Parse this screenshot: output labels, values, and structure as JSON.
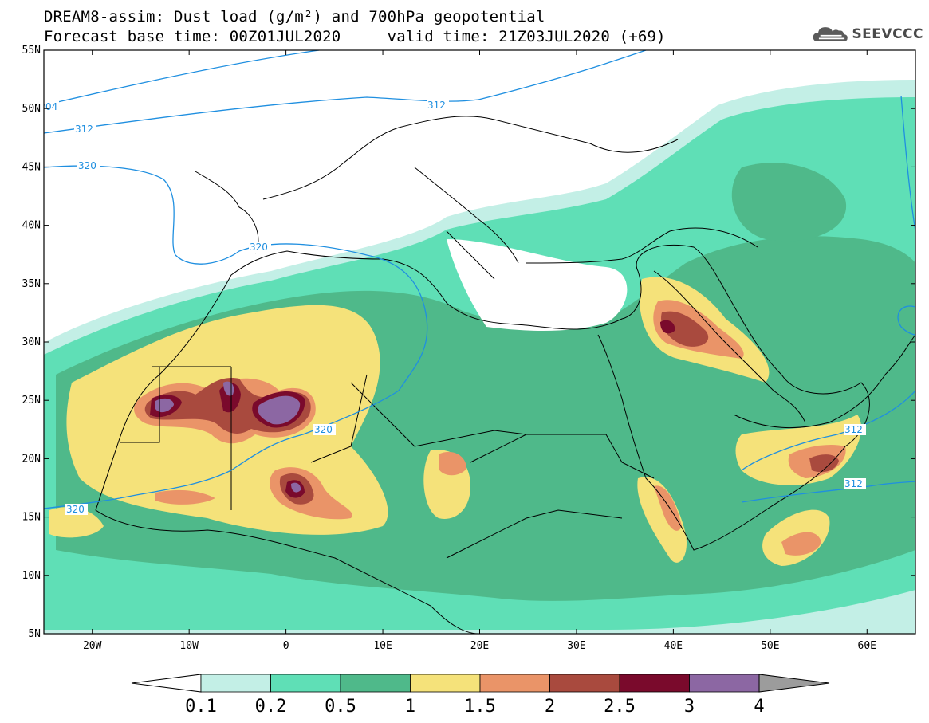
{
  "title_line1": "DREAM8-assim: Dust load (g/m²) and 700hPa geopotential",
  "title_line2": "Forecast base time: 00Z01JUL2020     valid time: 21Z03JUL2020 (+69)",
  "logo": {
    "icon": "cloud-logo-icon",
    "text": "SEEVCCC"
  },
  "map": {
    "lon_range": [
      -25,
      65
    ],
    "lat_range": [
      5,
      55
    ],
    "lat_labels": [
      "55N",
      "50N",
      "45N",
      "40N",
      "35N",
      "30N",
      "25N",
      "20N",
      "15N",
      "10N",
      "5N"
    ],
    "lon_labels": [
      "20W",
      "10W",
      "0",
      "10E",
      "20E",
      "30E",
      "40E",
      "50E",
      "60E"
    ],
    "contour_labels": [
      "04",
      "312",
      "312",
      "320",
      "320",
      "320",
      "320",
      "312",
      "312"
    ]
  },
  "colorbar": {
    "labels": [
      "0.1",
      "0.2",
      "0.5",
      "1",
      "1.5",
      "2",
      "2.5",
      "3",
      "4"
    ],
    "colors": [
      "#c3efe6",
      "#5fdfb6",
      "#4fb98a",
      "#f5e27a",
      "#ea9468",
      "#a94a3e",
      "#7a0a2c",
      "#8c67a3"
    ],
    "under_color": "#ffffff",
    "over_color": "#9c9c9c"
  }
}
